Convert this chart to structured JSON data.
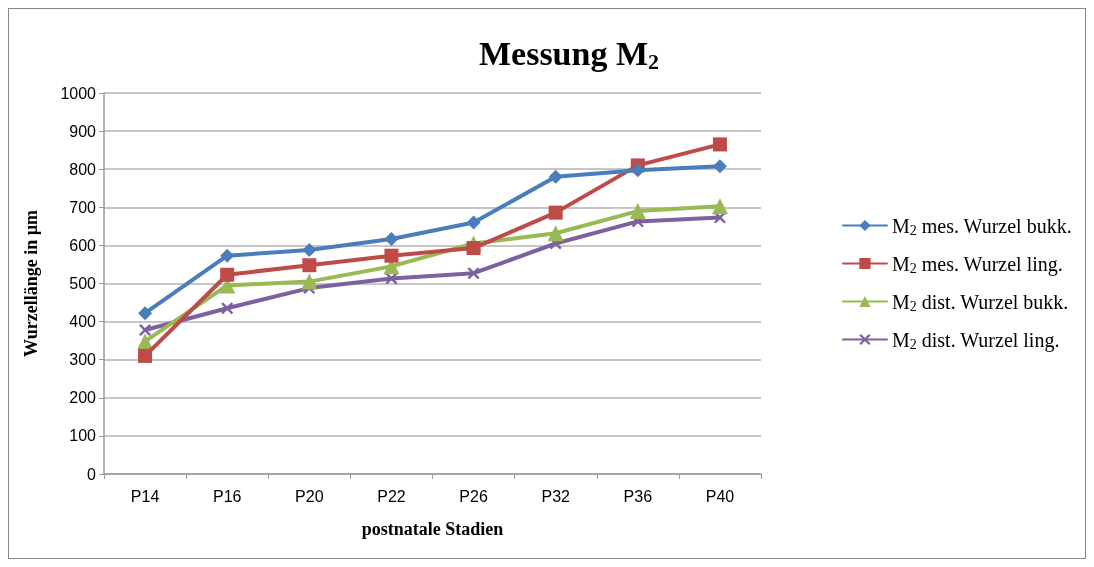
{
  "chart_data": {
    "type": "line",
    "title": "Messung M$_{2}$",
    "xlabel": "postnatale Stadien",
    "ylabel": "Wurzellänge in µm",
    "categories": [
      "P14",
      "P16",
      "P20",
      "P22",
      "P26",
      "P32",
      "P36",
      "P40"
    ],
    "ylim": [
      0,
      1000
    ],
    "yticks": [
      0,
      100,
      200,
      300,
      400,
      500,
      600,
      700,
      800,
      900,
      1000
    ],
    "grid": "y",
    "legend": "right",
    "series": [
      {
        "name": "M$_{2}$ mes. Wurzel bukk.",
        "color": "#4a7ebb",
        "marker": "diamond",
        "values": [
          422,
          573,
          588,
          617,
          660,
          780,
          797,
          808
        ]
      },
      {
        "name": "M$_{2}$ mes. Wurzel ling.",
        "color": "#be4b48",
        "marker": "square",
        "values": [
          310,
          523,
          548,
          573,
          593,
          686,
          810,
          865
        ]
      },
      {
        "name": "M$_{2}$ dist. Wurzel bukk.",
        "color": "#98b954",
        "marker": "triangle",
        "values": [
          348,
          495,
          505,
          545,
          605,
          632,
          690,
          703
        ]
      },
      {
        "name": "M$_{2}$ dist. Wurzel ling.",
        "color": "#7d60a0",
        "marker": "cross",
        "values": [
          378,
          435,
          488,
          513,
          527,
          605,
          663,
          673
        ]
      }
    ]
  }
}
